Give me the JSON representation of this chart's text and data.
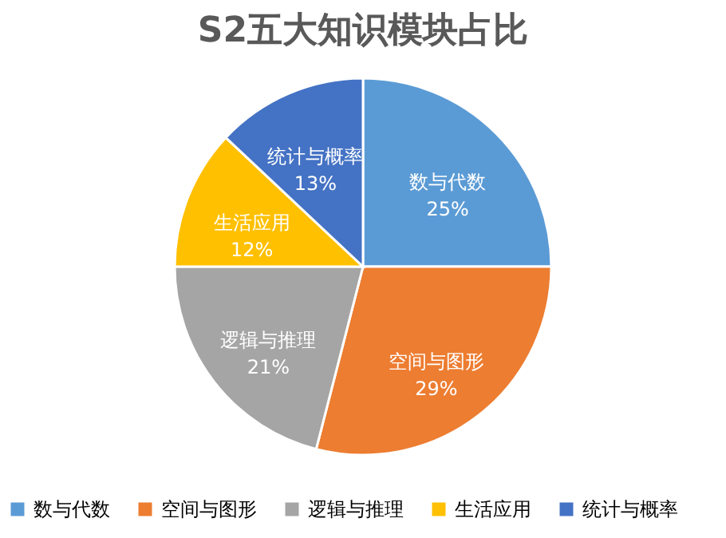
{
  "chart_data": {
    "type": "pie",
    "title": "S2五大知识模块占比",
    "categories": [
      "数与代数",
      "空间与图形",
      "逻辑与推理",
      "生活应用",
      "统计与概率"
    ],
    "values": [
      25,
      29,
      21,
      12,
      13
    ],
    "value_labels": [
      "25%",
      "29%",
      "21%",
      "12%",
      "13%"
    ],
    "colors": [
      "#5b9bd5",
      "#ed7d31",
      "#a5a5a5",
      "#ffc000",
      "#4472c4"
    ],
    "legend": "bottom"
  }
}
